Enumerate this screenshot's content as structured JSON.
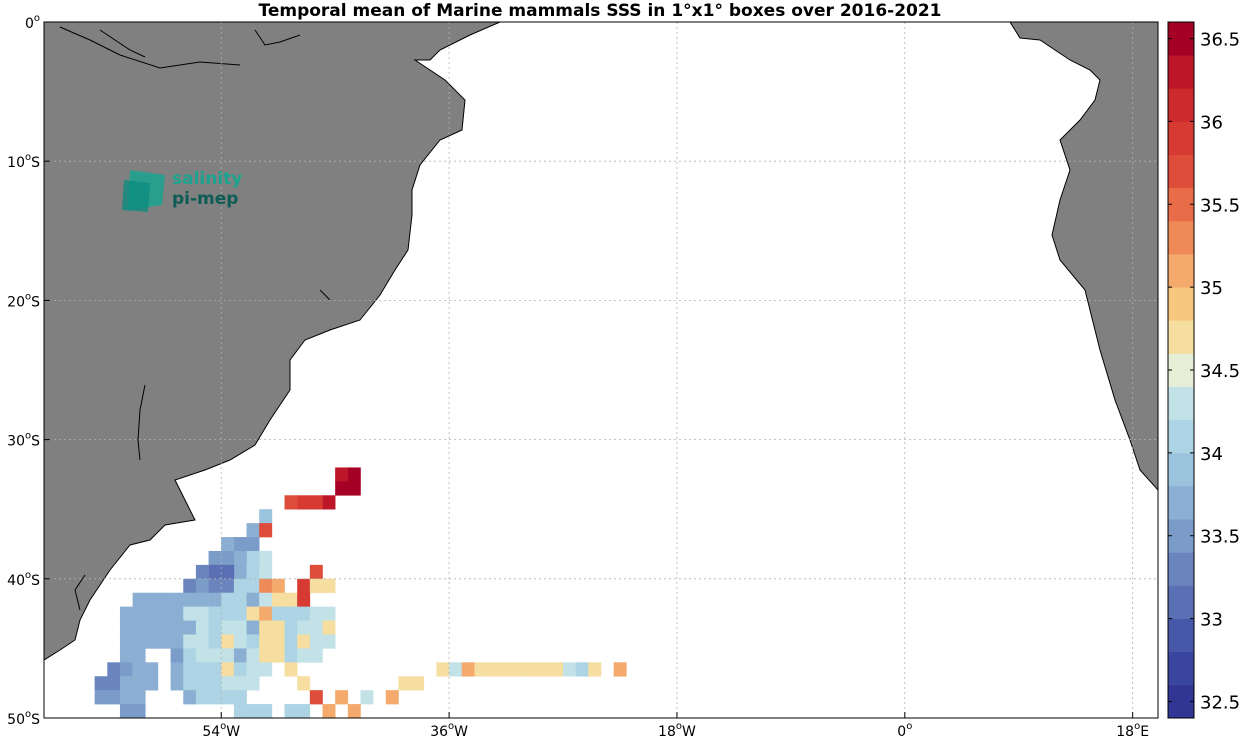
{
  "chart_data": {
    "type": "heatmap",
    "title": "Temporal mean of Marine mammals SSS in 1°x1° boxes over 2016-2021",
    "x_ticks": [
      {
        "lon": -54,
        "num": "54",
        "suf": "W"
      },
      {
        "lon": -36,
        "num": "36",
        "suf": "W"
      },
      {
        "lon": -18,
        "num": "18",
        "suf": "W"
      },
      {
        "lon": 0,
        "num": "0",
        "suf": ""
      },
      {
        "lon": 18,
        "num": "18",
        "suf": "E"
      }
    ],
    "y_ticks": [
      {
        "lat": 0,
        "num": "0",
        "suf": ""
      },
      {
        "lat": -10,
        "num": "10",
        "suf": "S"
      },
      {
        "lat": -20,
        "num": "20",
        "suf": "S"
      },
      {
        "lat": -30,
        "num": "30",
        "suf": "S"
      },
      {
        "lat": -40,
        "num": "40",
        "suf": "S"
      },
      {
        "lat": -50,
        "num": "50",
        "suf": "S"
      }
    ],
    "xlim": [
      -68,
      20
    ],
    "ylim": [
      -50,
      0
    ],
    "grid": true,
    "colorbar": {
      "min": 32.4,
      "max": 36.6,
      "levels": 21,
      "tick_labels": [
        "32.5",
        "33",
        "33.5",
        "34",
        "34.5",
        "35",
        "35.5",
        "36",
        "36.5"
      ],
      "colors": [
        "#313695",
        "#3a45a0",
        "#4858a9",
        "#5a6fb4",
        "#6a85be",
        "#7b9cc8",
        "#8bafd3",
        "#9cc3dd",
        "#acd4e4",
        "#c2e2e8",
        "#e6eed6",
        "#f5deA0",
        "#f6c87f",
        "#f3aa6c",
        "#ee8a57",
        "#e86c48",
        "#dd4d3a",
        "#d63a33",
        "#cd2a2d",
        "#bd1629",
        "#a50026"
      ]
    },
    "land_color": "#808080",
    "cells": [
      [
        -44,
        -32,
        36.6
      ],
      [
        -45,
        -32,
        36.2
      ],
      [
        -44,
        -33,
        36.6
      ],
      [
        -45,
        -33,
        36.6
      ],
      [
        -46,
        -34,
        36.3
      ],
      [
        -47,
        -34,
        36.0
      ],
      [
        -48,
        -34,
        36.0
      ],
      [
        -49,
        -34,
        35.6
      ],
      [
        -51,
        -35,
        33.9
      ],
      [
        -52,
        -36,
        33.6
      ],
      [
        -51,
        -36,
        35.6
      ],
      [
        -52,
        -37,
        33.5
      ],
      [
        -53,
        -37,
        33.5
      ],
      [
        -54,
        -37,
        33.6
      ],
      [
        -51,
        -38,
        34.2
      ],
      [
        -52,
        -38,
        34.1
      ],
      [
        -53,
        -38,
        33.6
      ],
      [
        -54,
        -38,
        33.5
      ],
      [
        -55,
        -38,
        33.5
      ],
      [
        -53,
        -39,
        33.8
      ],
      [
        -54,
        -39,
        33.1
      ],
      [
        -55,
        -39,
        33.1
      ],
      [
        -56,
        -39,
        33.4
      ],
      [
        -52,
        -39,
        34.0
      ],
      [
        -51,
        -39,
        34.2
      ],
      [
        -47,
        -39,
        35.6
      ],
      [
        -57,
        -40,
        33.3
      ],
      [
        -56,
        -40,
        33.5
      ],
      [
        -55,
        -40,
        33.4
      ],
      [
        -54,
        -40,
        33.3
      ],
      [
        -53,
        -40,
        34.1
      ],
      [
        -52,
        -40,
        34.0
      ],
      [
        -51,
        -40,
        35.4
      ],
      [
        -50,
        -40,
        35.1
      ],
      [
        -48,
        -40,
        36.0
      ],
      [
        -47,
        -40,
        34.6
      ],
      [
        -46,
        -40,
        34.6
      ],
      [
        -61,
        -41,
        33.8
      ],
      [
        -60,
        -41,
        33.7
      ],
      [
        -59,
        -41,
        33.7
      ],
      [
        -58,
        -41,
        33.7
      ],
      [
        -57,
        -41,
        33.6
      ],
      [
        -56,
        -41,
        33.8
      ],
      [
        -55,
        -41,
        33.6
      ],
      [
        -54,
        -41,
        34.0
      ],
      [
        -53,
        -41,
        34.1
      ],
      [
        -52,
        -41,
        33.8
      ],
      [
        -51,
        -41,
        34.4
      ],
      [
        -50,
        -41,
        34.6
      ],
      [
        -49,
        -41,
        34.6
      ],
      [
        -48,
        -41,
        36.0
      ],
      [
        -62,
        -42,
        33.6
      ],
      [
        -61,
        -42,
        33.6
      ],
      [
        -60,
        -42,
        33.6
      ],
      [
        -59,
        -42,
        33.6
      ],
      [
        -58,
        -42,
        33.6
      ],
      [
        -57,
        -42,
        34.2
      ],
      [
        -56,
        -42,
        34.2
      ],
      [
        -55,
        -42,
        34.1
      ],
      [
        -54,
        -42,
        34.1
      ],
      [
        -53,
        -42,
        34.0
      ],
      [
        -52,
        -42,
        34.8
      ],
      [
        -51,
        -42,
        35.0
      ],
      [
        -50,
        -42,
        34.0
      ],
      [
        -49,
        -42,
        34.1
      ],
      [
        -48,
        -42,
        34.1
      ],
      [
        -47,
        -42,
        34.2
      ],
      [
        -46,
        -42,
        34.2
      ],
      [
        -62,
        -43,
        33.6
      ],
      [
        -61,
        -43,
        33.6
      ],
      [
        -60,
        -43,
        33.6
      ],
      [
        -59,
        -43,
        33.6
      ],
      [
        -58,
        -43,
        33.6
      ],
      [
        -57,
        -43,
        33.8
      ],
      [
        -56,
        -43,
        34.2
      ],
      [
        -55,
        -43,
        34.1
      ],
      [
        -54,
        -43,
        34.2
      ],
      [
        -53,
        -43,
        34.2
      ],
      [
        -52,
        -43,
        33.8
      ],
      [
        -51,
        -43,
        34.6
      ],
      [
        -50,
        -43,
        34.6
      ],
      [
        -49,
        -43,
        34.1
      ],
      [
        -48,
        -43,
        34.3
      ],
      [
        -47,
        -43,
        34.3
      ],
      [
        -46,
        -43,
        34.6
      ],
      [
        -62,
        -44,
        33.6
      ],
      [
        -61,
        -44,
        33.6
      ],
      [
        -60,
        -44,
        33.6
      ],
      [
        -59,
        -44,
        33.6
      ],
      [
        -58,
        -44,
        33.6
      ],
      [
        -57,
        -44,
        34.2
      ],
      [
        -56,
        -44,
        34.3
      ],
      [
        -55,
        -44,
        34.1
      ],
      [
        -54,
        -44,
        34.8
      ],
      [
        -53,
        -44,
        34.2
      ],
      [
        -52,
        -44,
        34.1
      ],
      [
        -51,
        -44,
        34.8
      ],
      [
        -50,
        -44,
        34.6
      ],
      [
        -49,
        -44,
        34.1
      ],
      [
        -48,
        -44,
        34.6
      ],
      [
        -47,
        -44,
        34.3
      ],
      [
        -46,
        -44,
        34.3
      ],
      [
        -62,
        -45,
        33.6
      ],
      [
        -61,
        -45,
        33.6
      ],
      [
        -58,
        -45,
        33.5
      ],
      [
        -57,
        -45,
        34.1
      ],
      [
        -56,
        -45,
        34.4
      ],
      [
        -55,
        -45,
        34.4
      ],
      [
        -54,
        -45,
        34.3
      ],
      [
        -53,
        -45,
        33.6
      ],
      [
        -52,
        -45,
        34.3
      ],
      [
        -51,
        -45,
        34.8
      ],
      [
        -50,
        -45,
        34.6
      ],
      [
        -49,
        -45,
        34.1
      ],
      [
        -48,
        -45,
        34.4
      ],
      [
        -47,
        -45,
        34.3
      ],
      [
        -63,
        -46,
        33.4
      ],
      [
        -62,
        -46,
        33.5
      ],
      [
        -61,
        -46,
        33.6
      ],
      [
        -60,
        -46,
        33.6
      ],
      [
        -58,
        -46,
        33.8
      ],
      [
        -57,
        -46,
        34.1
      ],
      [
        -56,
        -46,
        34.1
      ],
      [
        -55,
        -46,
        34.1
      ],
      [
        -54,
        -46,
        34.8
      ],
      [
        -53,
        -46,
        34.0
      ],
      [
        -52,
        -46,
        34.4
      ],
      [
        -51,
        -46,
        34.3
      ],
      [
        -49,
        -46,
        34.6
      ],
      [
        -37,
        -46,
        34.6
      ],
      [
        -36,
        -46,
        34.4
      ],
      [
        -35,
        -46,
        35.0
      ],
      [
        -34,
        -46,
        34.6
      ],
      [
        -33,
        -46,
        34.6
      ],
      [
        -32,
        -46,
        34.6
      ],
      [
        -31,
        -46,
        34.6
      ],
      [
        -30,
        -46,
        34.6
      ],
      [
        -29,
        -46,
        34.6
      ],
      [
        -28,
        -46,
        34.6
      ],
      [
        -27,
        -46,
        34.4
      ],
      [
        -26,
        -46,
        34.0
      ],
      [
        -25,
        -46,
        34.6
      ],
      [
        -23,
        -46,
        35.0
      ],
      [
        -64,
        -47,
        33.2
      ],
      [
        -63,
        -47,
        33.3
      ],
      [
        -62,
        -47,
        33.6
      ],
      [
        -61,
        -47,
        33.6
      ],
      [
        -60,
        -47,
        33.6
      ],
      [
        -58,
        -47,
        33.8
      ],
      [
        -57,
        -47,
        34.1
      ],
      [
        -56,
        -47,
        34.1
      ],
      [
        -55,
        -47,
        34.1
      ],
      [
        -54,
        -47,
        34.4
      ],
      [
        -53,
        -47,
        34.4
      ],
      [
        -52,
        -47,
        34.4
      ],
      [
        -48,
        -47,
        34.6
      ],
      [
        -40,
        -47,
        34.8
      ],
      [
        -39,
        -47,
        34.8
      ],
      [
        -64,
        -48,
        33.5
      ],
      [
        -63,
        -48,
        33.5
      ],
      [
        -62,
        -48,
        33.6
      ],
      [
        -61,
        -48,
        33.6
      ],
      [
        -57,
        -48,
        33.8
      ],
      [
        -56,
        -48,
        34.1
      ],
      [
        -55,
        -48,
        34.1
      ],
      [
        -54,
        -48,
        34.1
      ],
      [
        -53,
        -48,
        34.1
      ],
      [
        -47,
        -48,
        35.6
      ],
      [
        -45,
        -48,
        35.0
      ],
      [
        -43,
        -48,
        34.4
      ],
      [
        -41,
        -48,
        35.0
      ],
      [
        -62,
        -49,
        33.5
      ],
      [
        -61,
        -49,
        33.5
      ],
      [
        -53,
        -49,
        34.1
      ],
      [
        -52,
        -49,
        34.1
      ],
      [
        -51,
        -49,
        34.1
      ],
      [
        -49,
        -49,
        34.1
      ],
      [
        -48,
        -49,
        34.1
      ],
      [
        -46,
        -49,
        35.0
      ],
      [
        -44,
        -49,
        35.0
      ]
    ]
  }
}
